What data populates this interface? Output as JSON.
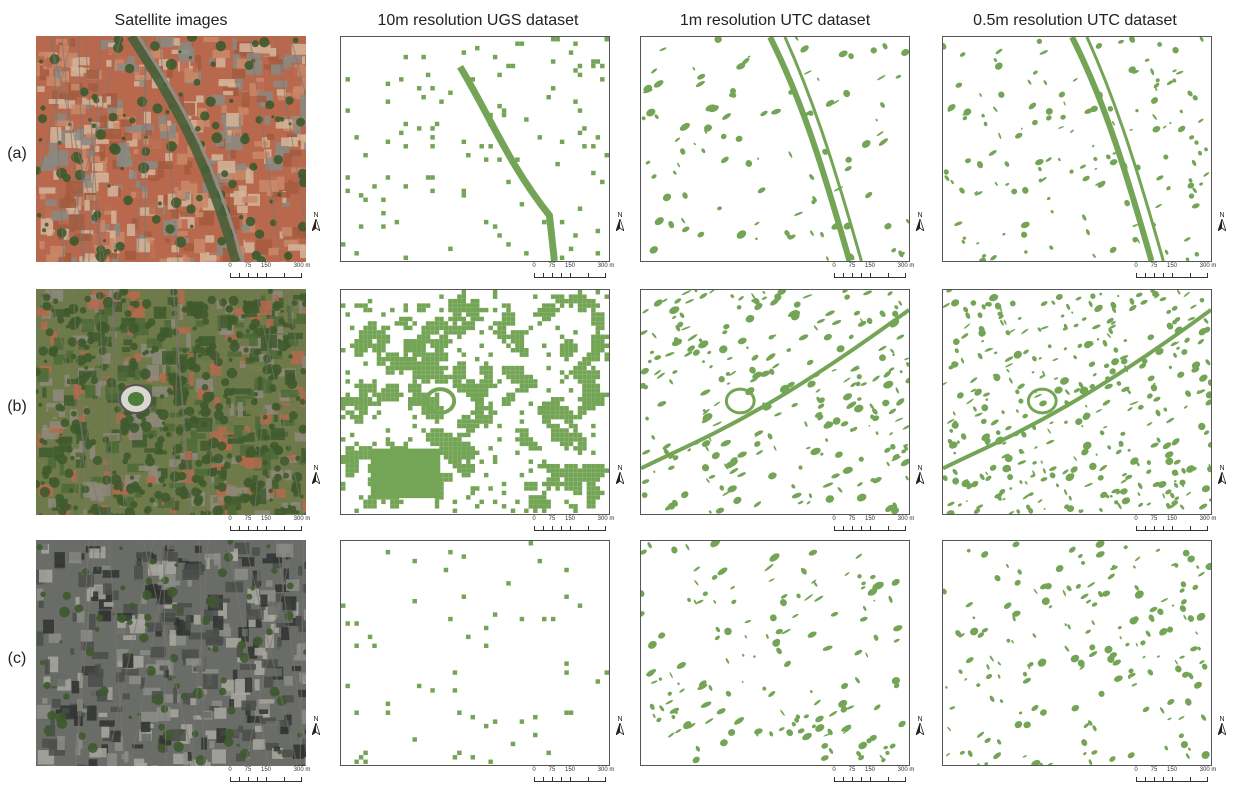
{
  "columns": [
    {
      "key": "satellite",
      "title": "Satellite images"
    },
    {
      "key": "ugs10",
      "title": "10m resolution UGS dataset"
    },
    {
      "key": "utc1",
      "title": "1m  resolution UTC dataset"
    },
    {
      "key": "utc05",
      "title": "0.5m resolution UTC dataset"
    }
  ],
  "rows": [
    {
      "key": "a",
      "label": "(a)",
      "description": "dense city blocks with a diagonal tree-lined avenue"
    },
    {
      "key": "b",
      "label": "(b)",
      "description": "residential area with stadium and abundant vegetation"
    },
    {
      "key": "c",
      "label": "(c)",
      "description": "high-rise downtown with scattered street trees"
    }
  ],
  "north_label": "N",
  "scale_ticks": [
    "0",
    "75",
    "150",
    "300 m"
  ],
  "colors": {
    "vegetation": "#74a556",
    "background": "#ffffff",
    "frame": "#555555",
    "sat_roof_a": "#b8694d",
    "sat_roof_b": "#9a5a45",
    "sat_gray": "#8a8a82",
    "sat_tree": "#3e5a2e",
    "sat_dark": "#2a2f2a"
  }
}
